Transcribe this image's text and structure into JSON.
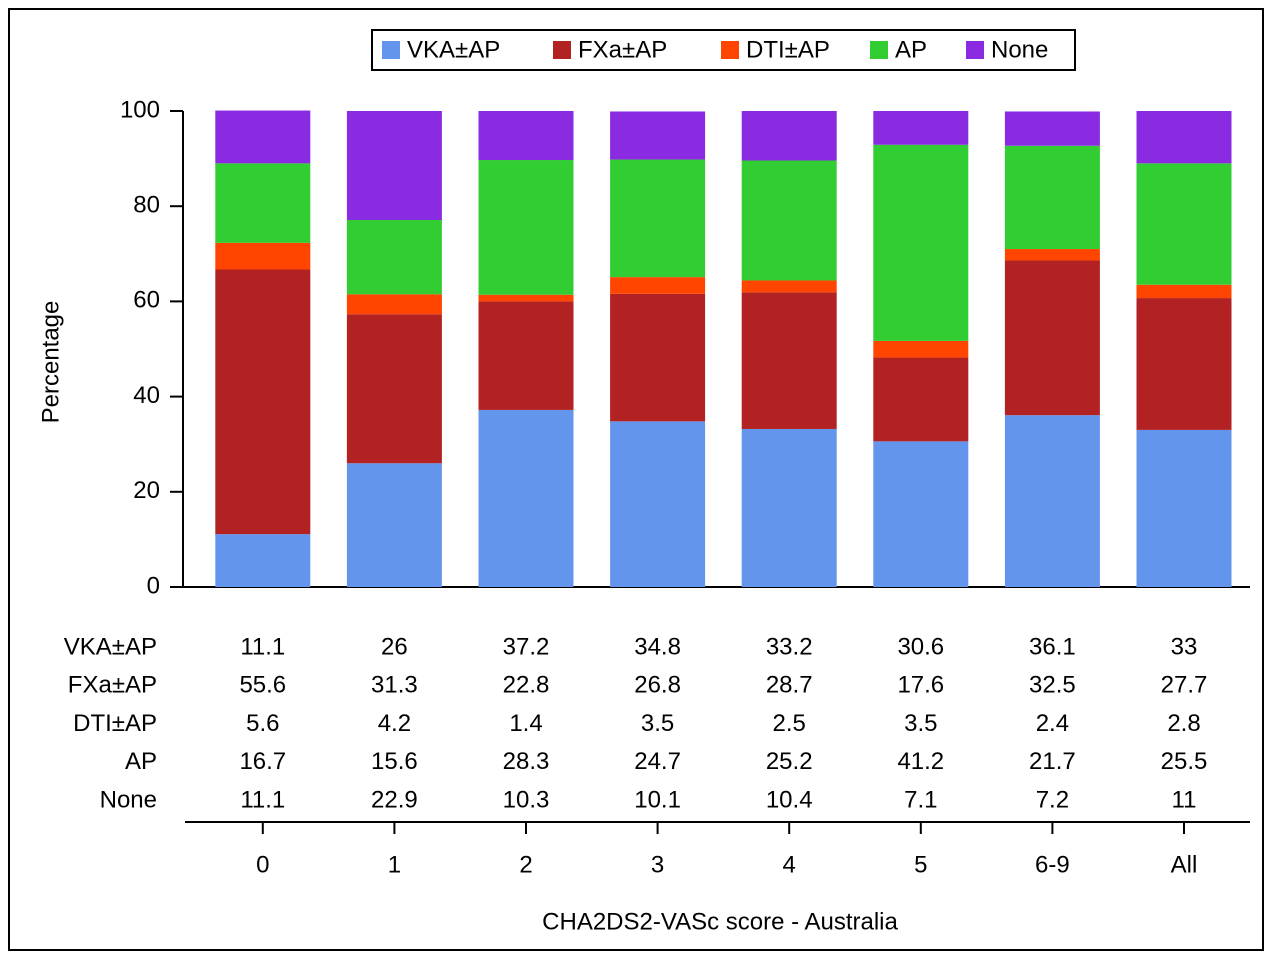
{
  "chart_data": {
    "type": "stacked_bar",
    "x_label": "CHA2DS2-VASc score - Australia",
    "y_label": "Percentage",
    "categories": [
      "0",
      "1",
      "2",
      "3",
      "4",
      "5",
      "6-9",
      "All"
    ],
    "series": [
      {
        "name": "VKA±AP",
        "color": "#6495ed",
        "values": [
          11.1,
          26,
          37.2,
          34.8,
          33.2,
          30.6,
          36.1,
          33
        ]
      },
      {
        "name": "FXa±AP",
        "color": "#b22222",
        "values": [
          55.6,
          31.3,
          22.8,
          26.8,
          28.7,
          17.6,
          32.5,
          27.7
        ]
      },
      {
        "name": "DTI±AP",
        "color": "#ff4500",
        "values": [
          5.6,
          4.2,
          1.4,
          3.5,
          2.5,
          3.5,
          2.4,
          2.8
        ]
      },
      {
        "name": "AP",
        "color": "#32cd32",
        "values": [
          16.7,
          15.6,
          28.3,
          24.7,
          25.2,
          41.2,
          21.7,
          25.5
        ]
      },
      {
        "name": "None",
        "color": "#8a2be2",
        "values": [
          11.1,
          22.9,
          10.3,
          10.1,
          10.4,
          7.1,
          7.2,
          11
        ]
      }
    ],
    "ylim": [
      0,
      100
    ],
    "yticks": [
      0,
      20,
      40,
      60,
      80,
      100
    ],
    "legend": "top"
  }
}
